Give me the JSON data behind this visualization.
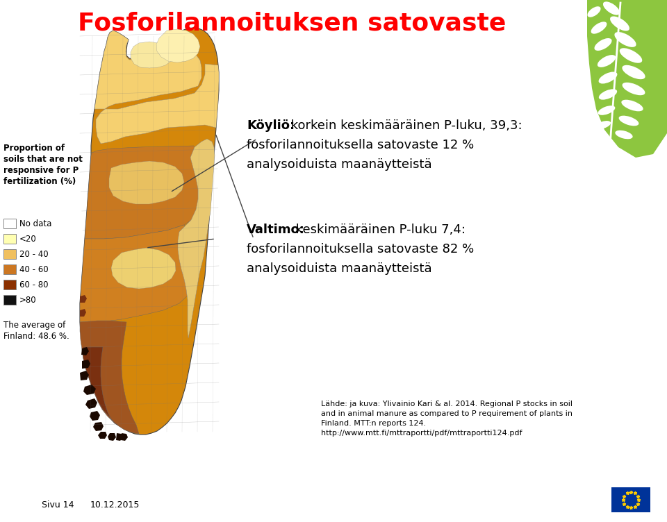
{
  "title": "Fosforilannoituksen satovaste",
  "title_color": "#ff0000",
  "title_fontsize": 26,
  "background_color": "#ffffff",
  "green_logo_color": "#8dc63f",
  "annotation_koyli_line1_bold": "Köyliö:",
  "annotation_koyli_line1_rest": " korkein keskimääräinen P-luku, 39,3:",
  "annotation_koyli_line2": "fosforilannoituksella satovaste 12 %",
  "annotation_koyli_line3": "analysoiduista maanäytteistä",
  "annotation_valtimo_line1_bold": "Valtimo:",
  "annotation_valtimo_line1_rest": " keskimääräinen P-luku 7,4:",
  "annotation_valtimo_line2": "fosforilannoituksella satovaste 82 %",
  "annotation_valtimo_line3": "analysoiduista maanäytteistä",
  "legend_title": "Proportion of\nsoils that are not\nresponsive for P\nfertilization (%)",
  "legend_entries": [
    "No data",
    "<20",
    "20 - 40",
    "40 - 60",
    "60 - 80",
    ">80"
  ],
  "legend_colors": [
    "#ffffff",
    "#ffffb2",
    "#f0c060",
    "#cc7722",
    "#8b3000",
    "#111111"
  ],
  "average_text": "The average of\nFinland: 48.6 %.",
  "source_line1": "Lähde: ja kuva: Ylivainio Kari & al. 2014. Regional P stocks in soil",
  "source_line2": "and in animal manure as compared to P requirement of plants in",
  "source_line3": "Finland. MTT:n reports 124.",
  "source_line4": "http://www.mtt.fi/mttraportti/pdf/mttraportti124.pdf",
  "footer_left": "Sivu 14",
  "footer_date": "10.12.2015",
  "annotation_fontsize": 13,
  "legend_fontsize": 8.5,
  "source_fontsize": 8,
  "footer_fontsize": 9
}
